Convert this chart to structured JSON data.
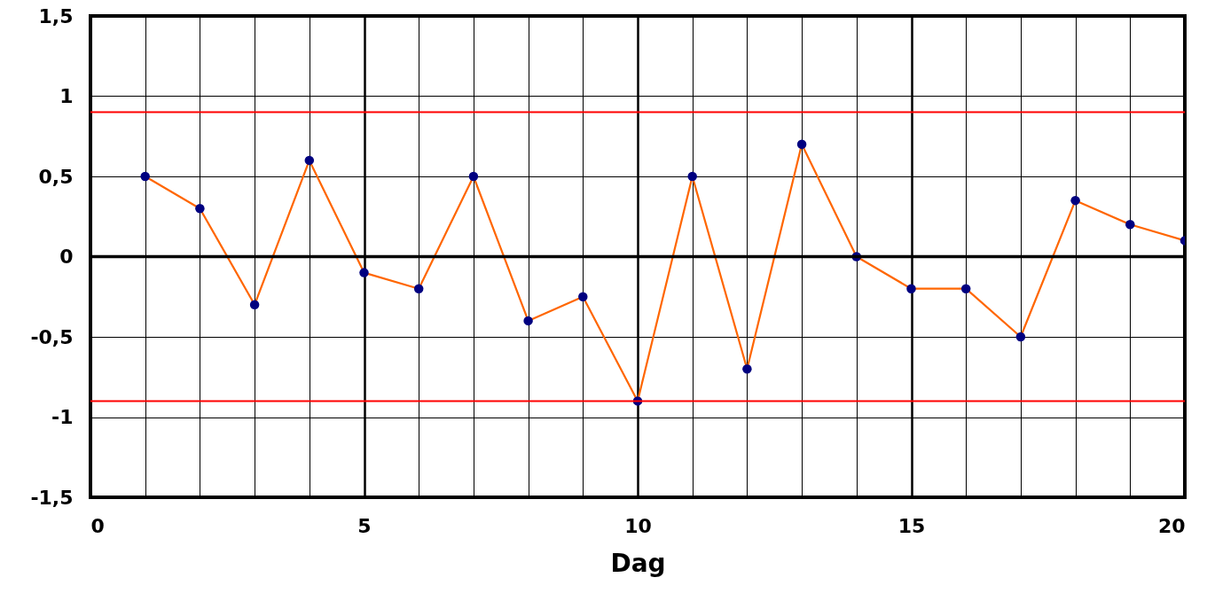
{
  "chart_data": {
    "type": "line",
    "xlabel": "Dag",
    "x": [
      1,
      2,
      3,
      4,
      5,
      6,
      7,
      8,
      9,
      10,
      11,
      12,
      13,
      14,
      15,
      16,
      17,
      18,
      19,
      20
    ],
    "series": [
      {
        "color": "#ff6600",
        "values": [
          0.5,
          0.3,
          -0.3,
          0.6,
          -0.1,
          -0.2,
          0.5,
          -0.4,
          -0.25,
          -0.9,
          0.5,
          -0.7,
          0.7,
          0,
          -0.2,
          -0.2,
          -0.5,
          0.35,
          0.2,
          0.1
        ]
      }
    ],
    "marker": "circle",
    "xlim": [
      0,
      20
    ],
    "xticks": [
      0,
      {
        "value": 1,
        "label": null
      },
      {
        "value": 2,
        "label": null
      },
      {
        "value": 3,
        "label": null
      },
      {
        "value": 4,
        "label": null
      },
      5,
      {
        "value": 6,
        "label": null
      },
      {
        "value": 7,
        "label": null
      },
      {
        "value": 8,
        "label": null
      },
      {
        "value": 9,
        "label": null
      },
      10,
      {
        "value": 11,
        "label": null
      },
      {
        "value": 12,
        "label": null
      },
      {
        "value": 13,
        "label": null
      },
      {
        "value": 14,
        "label": null
      },
      15,
      {
        "value": 16,
        "label": null
      },
      {
        "value": 17,
        "label": null
      },
      {
        "value": 18,
        "label": null
      },
      {
        "value": 19,
        "label": null
      },
      20
    ],
    "ylim": [
      -1.5,
      1.5
    ],
    "yticks": [
      {
        "value": -1.5,
        "label": "-1,5"
      },
      -1,
      {
        "value": -0.5,
        "label": "-0,5"
      },
      0,
      {
        "value": 0.5,
        "label": "0,5"
      },
      1,
      {
        "value": 1.5,
        "label": "1,5"
      }
    ],
    "ref_lines": [
      {
        "axis": "y",
        "value": 0.9,
        "color": "#ff0000"
      },
      {
        "axis": "y",
        "value": -0.9,
        "color": "#ff0000"
      },
      {
        "axis": "y",
        "value": 0,
        "color": "#000000"
      }
    ],
    "grid": true
  }
}
